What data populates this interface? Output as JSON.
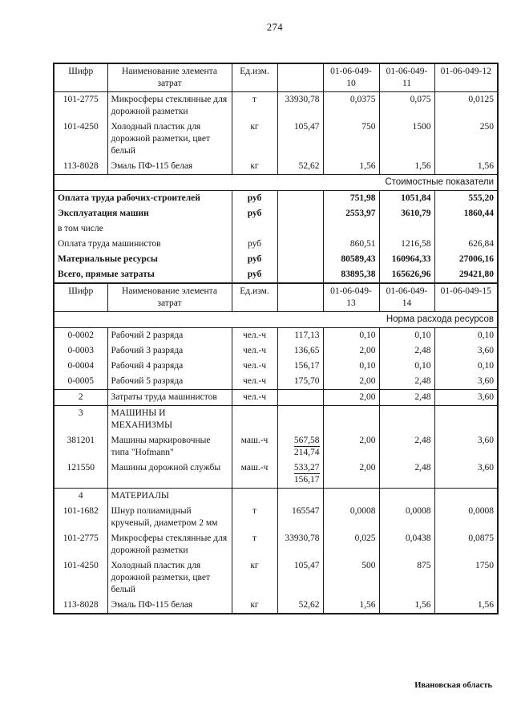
{
  "page": {
    "number": "274",
    "footer": "Ивановская область"
  },
  "table1": {
    "header": {
      "code": "Шифр",
      "name": "Наименование элемента затрат",
      "unit": "Ед.изм.",
      "blank": "",
      "cols": [
        "01-06-049-10",
        "01-06-049-11",
        "01-06-049-12"
      ]
    },
    "rows": [
      {
        "kind": "data",
        "code": "101-2775",
        "name": "Микросферы стеклянные для дорожной разметки",
        "unit": "т",
        "price": "33930,78",
        "values": [
          "0,0375",
          "0,075",
          "0,0125"
        ]
      },
      {
        "kind": "data",
        "code": "101-4250",
        "name": "Холодный пластик для дорожной разметки, цвет белый",
        "unit": "кг",
        "price": "105,47",
        "values": [
          "750",
          "1500",
          "250"
        ]
      },
      {
        "kind": "data",
        "code": "113-8028",
        "name": "Эмаль ПФ-115 белая",
        "unit": "кг",
        "price": "52,62",
        "values": [
          "1,56",
          "1,56",
          "1,56"
        ]
      },
      {
        "kind": "band",
        "label": "Стоимостные показатели"
      },
      {
        "kind": "cost",
        "name": "Оплата труда рабочих-строителей",
        "unit": "руб",
        "values": [
          "751,98",
          "1051,84",
          "555,20"
        ],
        "bold": true
      },
      {
        "kind": "cost",
        "name": "Эксплуатация машин",
        "unit": "руб",
        "values": [
          "2553,97",
          "3610,79",
          "1860,44"
        ],
        "bold": true
      },
      {
        "kind": "cost",
        "name": "в том числе",
        "unit": "",
        "values": [
          "",
          "",
          ""
        ],
        "bold": false
      },
      {
        "kind": "cost",
        "name": "Оплата труда машинистов",
        "unit": "руб",
        "values": [
          "860,51",
          "1216,58",
          "626,84"
        ],
        "bold": false
      },
      {
        "kind": "cost",
        "name": "Материальные ресурсы",
        "unit": "руб",
        "values": [
          "80589,43",
          "160964,33",
          "27006,16"
        ],
        "bold": true
      },
      {
        "kind": "cost",
        "name": "Всего, прямые затраты",
        "unit": "руб",
        "values": [
          "83895,38",
          "165626,96",
          "29421,80"
        ],
        "bold": true
      }
    ]
  },
  "table2": {
    "header": {
      "code": "Шифр",
      "name": "Наименование элемента затрат",
      "unit": "Ед.изм.",
      "blank": "",
      "cols": [
        "01-06-049-13",
        "01-06-049-14",
        "01-06-049-15"
      ]
    },
    "rows": [
      {
        "kind": "band",
        "label": "Норма расхода ресурсов"
      },
      {
        "kind": "data",
        "code": "0-0002",
        "name": "Рабочий 2 разряда",
        "unit": "чел.-ч",
        "price": "117,13",
        "values": [
          "0,10",
          "0,10",
          "0,10"
        ]
      },
      {
        "kind": "data",
        "code": "0-0003",
        "name": "Рабочий 3 разряда",
        "unit": "чел.-ч",
        "price": "136,65",
        "values": [
          "2,00",
          "2,48",
          "3,60"
        ]
      },
      {
        "kind": "data",
        "code": "0-0004",
        "name": "Рабочий 4 разряда",
        "unit": "чел.-ч",
        "price": "156,17",
        "values": [
          "0,10",
          "0,10",
          "0,10"
        ]
      },
      {
        "kind": "data",
        "code": "0-0005",
        "name": "Рабочий 5 разряда",
        "unit": "чел.-ч",
        "price": "175,70",
        "values": [
          "2,00",
          "2,48",
          "3,60"
        ]
      },
      {
        "kind": "data",
        "code": "2",
        "name": "Затраты труда машинистов",
        "unit": "чел.-ч",
        "price": "",
        "values": [
          "2,00",
          "2,48",
          "3,60"
        ],
        "boldCode": true,
        "lineTop": true,
        "lineBottom": true
      },
      {
        "kind": "data",
        "code": "3",
        "name": "МАШИНЫ И МЕХАНИЗМЫ",
        "unit": "",
        "price": "",
        "values": [
          "",
          "",
          ""
        ],
        "boldCode": true,
        "boldName": true
      },
      {
        "kind": "data",
        "code": "381201",
        "name": "Машины маркировочные типа \"Hofmann\"",
        "unit": "маш.-ч",
        "price": {
          "top": "567,58",
          "bottom": "214,74"
        },
        "values": [
          "2,00",
          "2,48",
          "3,60"
        ]
      },
      {
        "kind": "data",
        "code": "121550",
        "name": "Машины дорожной службы",
        "unit": "маш.-ч",
        "price": {
          "top": "533,27",
          "bottom": "156,17"
        },
        "values": [
          "2,00",
          "2,48",
          "3,60"
        ]
      },
      {
        "kind": "data",
        "code": "4",
        "name": "МАТЕРИАЛЫ",
        "unit": "",
        "price": "",
        "values": [
          "",
          "",
          ""
        ],
        "boldCode": true,
        "boldName": true,
        "lineTop": true
      },
      {
        "kind": "data",
        "code": "101-1682",
        "name": "Шнур полиамидный крученый, диаметром 2 мм",
        "unit": "т",
        "price": "165547",
        "values": [
          "0,0008",
          "0,0008",
          "0,0008"
        ]
      },
      {
        "kind": "data",
        "code": "101-2775",
        "name": "Микросферы стеклянные для дорожной разметки",
        "unit": "т",
        "price": "33930,78",
        "values": [
          "0,025",
          "0,0438",
          "0,0875"
        ]
      },
      {
        "kind": "data",
        "code": "101-4250",
        "name": "Холодный пластик для дорожной разметки, цвет белый",
        "unit": "кг",
        "price": "105,47",
        "values": [
          "500",
          "875",
          "1750"
        ]
      },
      {
        "kind": "data",
        "code": "113-8028",
        "name": "Эмаль ПФ-115 белая",
        "unit": "кг",
        "price": "52,62",
        "values": [
          "1,56",
          "1,56",
          "1,56"
        ]
      }
    ]
  }
}
